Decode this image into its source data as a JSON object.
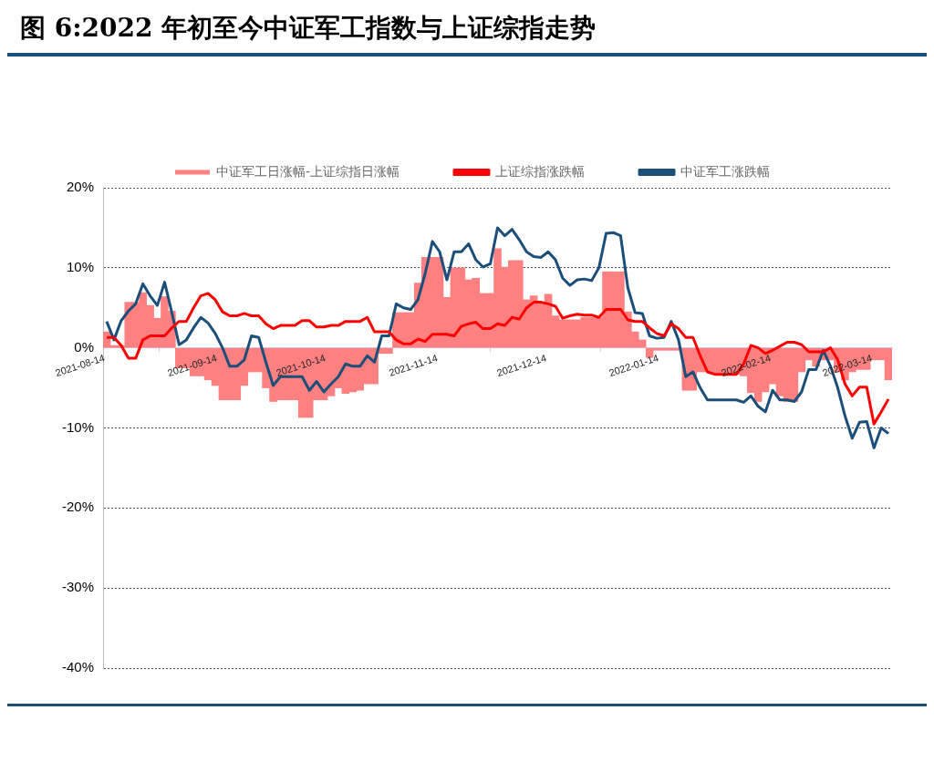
{
  "chart_data": {
    "type": "line",
    "title": "图 6:2022 年初至今中证军工指数与上证综指走势",
    "x": [
      "2021-08-15",
      "2021-08-17",
      "2021-08-19",
      "2021-08-21",
      "2021-08-23",
      "2021-08-25",
      "2021-08-27",
      "2021-08-29",
      "2021-08-31",
      "2021-09-02",
      "2021-09-04",
      "2021-09-06",
      "2021-09-08",
      "2021-09-10",
      "2021-09-12",
      "2021-09-14",
      "2021-09-16",
      "2021-09-18",
      "2021-09-20",
      "2021-09-22",
      "2021-09-24",
      "2021-09-26",
      "2021-09-28",
      "2021-09-30",
      "2021-10-02",
      "2021-10-04",
      "2021-10-06",
      "2021-10-08",
      "2021-10-10",
      "2021-10-12",
      "2021-10-14",
      "2021-10-16",
      "2021-10-18",
      "2021-10-20",
      "2021-10-22",
      "2021-10-24",
      "2021-10-26",
      "2021-10-28",
      "2021-10-30",
      "2021-11-01",
      "2021-11-03",
      "2021-11-05",
      "2021-11-07",
      "2021-11-09",
      "2021-11-11",
      "2021-11-13",
      "2021-11-15",
      "2021-11-17",
      "2021-11-19",
      "2021-11-21",
      "2021-11-23",
      "2021-11-25",
      "2021-11-27",
      "2021-11-29",
      "2021-12-01",
      "2021-12-03",
      "2021-12-05",
      "2021-12-07",
      "2021-12-09",
      "2021-12-11",
      "2021-12-13",
      "2021-12-15",
      "2021-12-17",
      "2021-12-19",
      "2021-12-21",
      "2021-12-23",
      "2021-12-25",
      "2021-12-27",
      "2021-12-29",
      "2021-12-31",
      "2022-01-02",
      "2022-01-04",
      "2022-01-06",
      "2022-01-08",
      "2022-01-10",
      "2022-01-12",
      "2022-01-14",
      "2022-01-16",
      "2022-01-18",
      "2022-01-20",
      "2022-01-22",
      "2022-01-24",
      "2022-01-26",
      "2022-01-28",
      "2022-01-30",
      "2022-02-01",
      "2022-02-03",
      "2022-02-05",
      "2022-02-07",
      "2022-02-09",
      "2022-02-11",
      "2022-02-13",
      "2022-02-15",
      "2022-02-17",
      "2022-02-19",
      "2022-02-21",
      "2022-02-23",
      "2022-02-25",
      "2022-02-27",
      "2022-03-01",
      "2022-03-03",
      "2022-03-05",
      "2022-03-07",
      "2022-03-09",
      "2022-03-11",
      "2022-03-13",
      "2022-03-15",
      "2022-03-17",
      "2022-03-19"
    ],
    "series": [
      {
        "name": "中证军工日涨幅-上证综指日涨幅",
        "type": "bar",
        "color": "#ff8080",
        "values": [
          2.0,
          0.3,
          0.3,
          5.7,
          5.7,
          6.9,
          5.3,
          3.7,
          6.4,
          4.6,
          -2.5,
          -2.5,
          -3.5,
          -3.5,
          -4.0,
          -4.7,
          -6.5,
          -6.5,
          -6.5,
          -4.7,
          -3.0,
          -3.0,
          -5.0,
          -6.7,
          -6.5,
          -6.5,
          -6.5,
          -8.7,
          -8.7,
          -6.5,
          -6.5,
          -6.0,
          -5.0,
          -5.7,
          -5.5,
          -5.3,
          -4.5,
          -4.5,
          -0.7,
          -0.7,
          4.4,
          4.4,
          4.4,
          8.1,
          11.3,
          11.3,
          11.3,
          6.3,
          10.0,
          10.0,
          8.5,
          8.7,
          6.8,
          6.8,
          12.4,
          10.1,
          10.9,
          10.9,
          6.0,
          6.5,
          5.5,
          6.7,
          4.0,
          3.5,
          3.5,
          3.5,
          3.8,
          3.8,
          3.8,
          9.5,
          9.5,
          9.5,
          4.5,
          2.0,
          1.0,
          -1.2,
          -0.3,
          -0.3,
          -0.3,
          -0.3,
          -5.3,
          -5.3,
          -3.0,
          -3.0,
          -3.3,
          -3.3,
          -3.3,
          -3.3,
          -3.5,
          -5.6,
          -6.7,
          -5.5,
          -4.5,
          -6.0,
          -6.7,
          -6.7,
          -3.0,
          -1.5,
          -2.3,
          -1.5,
          -1.5,
          -3.0,
          -4.0,
          -3.0,
          -2.7,
          -2.7,
          -1.5,
          -1.5,
          -4.0
        ]
      },
      {
        "name": "上证综指涨跌幅",
        "color": "#ff0000",
        "values": [
          1.3,
          1.3,
          0.3,
          -1.3,
          -1.3,
          1.0,
          1.5,
          1.5,
          1.5,
          2.5,
          3.3,
          3.3,
          5.0,
          6.5,
          6.8,
          6.0,
          4.5,
          4.0,
          4.0,
          4.3,
          4.0,
          4.0,
          3.0,
          2.4,
          2.8,
          2.8,
          2.8,
          3.4,
          3.4,
          2.6,
          2.6,
          2.8,
          2.8,
          3.3,
          3.3,
          3.3,
          3.8,
          2.0,
          2.0,
          2.0,
          1.0,
          0.5,
          0.5,
          1.1,
          0.8,
          1.7,
          1.7,
          1.7,
          1.5,
          2.7,
          3.0,
          3.2,
          2.4,
          2.4,
          3.0,
          2.8,
          3.8,
          3.6,
          5.0,
          5.7,
          5.7,
          5.5,
          5.2,
          3.7,
          4.0,
          4.2,
          4.1,
          4.1,
          3.8,
          4.8,
          4.8,
          4.8,
          3.5,
          3.3,
          3.3,
          2.5,
          1.8,
          1.5,
          3.0,
          2.4,
          1.3,
          1.3,
          -1.0,
          -3.0,
          -3.3,
          -3.3,
          -3.3,
          -3.3,
          -2.0,
          0.3,
          0.0,
          -0.7,
          -0.3,
          0.2,
          0.7,
          0.7,
          0.4,
          -0.5,
          -0.5,
          -0.5,
          0.0,
          -1.5,
          -4.5,
          -6.0,
          -4.9,
          -4.9,
          -9.5,
          -8.0,
          -6.4
        ]
      },
      {
        "name": "中证军工涨跌幅",
        "color": "#1b4f7a",
        "values": [
          3.3,
          1.0,
          3.4,
          4.6,
          5.5,
          8.0,
          6.5,
          5.3,
          8.2,
          4.4,
          0.4,
          1.0,
          2.5,
          3.8,
          3.1,
          1.8,
          0,
          -2.3,
          -2.3,
          -1.5,
          1.5,
          1.3,
          -1.8,
          -4.7,
          -3.6,
          -3.6,
          -3.6,
          -3.6,
          -5.3,
          -4.2,
          -5.5,
          -4.5,
          -3.6,
          -2.0,
          -2.3,
          -2.3,
          -1.0,
          -1.8,
          1.5,
          1.5,
          5.5,
          5.0,
          4.8,
          6.0,
          9.3,
          13.3,
          12.0,
          8.5,
          12.0,
          12.0,
          13.0,
          11.0,
          10.1,
          10.5,
          15.0,
          14.0,
          14.8,
          13.5,
          12.0,
          11.4,
          11.3,
          12.0,
          11.0,
          8.7,
          7.8,
          8.5,
          8.6,
          8.4,
          10.0,
          14.3,
          14.4,
          14.0,
          7.5,
          4.4,
          4.3,
          1.5,
          1.2,
          1.3,
          3.3,
          1.0,
          -3.6,
          -3.0,
          -5.0,
          -6.5,
          -6.5,
          -6.5,
          -6.5,
          -6.5,
          -6.8,
          -6.0,
          -7.3,
          -8.0,
          -5.3,
          -6.5,
          -6.5,
          -6.7,
          -5.5,
          -2.7,
          -2.7,
          -0.3,
          -2.3,
          -5.0,
          -8.5,
          -11.3,
          -9.3,
          -9.2,
          -12.5,
          -10.0,
          -10.7
        ]
      }
    ],
    "xlim": [
      "2021-08-14",
      "2022-03-20"
    ],
    "xticks": [
      "2021-08-14",
      "2021-09-14",
      "2021-10-14",
      "2021-11-14",
      "2021-12-14",
      "2022-01-14",
      "2022-02-14",
      "2022-03-14"
    ],
    "ylim": [
      -40,
      20
    ],
    "yticks": [
      {
        "value": -40,
        "label": "-40%"
      },
      {
        "value": -30,
        "label": "-30%"
      },
      {
        "value": -20,
        "label": "-20%"
      },
      {
        "value": -10,
        "label": "-10%"
      },
      {
        "value": 0,
        "label": "0%"
      },
      {
        "value": 10,
        "label": "10%"
      },
      {
        "value": 20,
        "label": "20%"
      }
    ],
    "grid": "y",
    "legend": "top",
    "marker": "none",
    "line_style": "solid"
  }
}
